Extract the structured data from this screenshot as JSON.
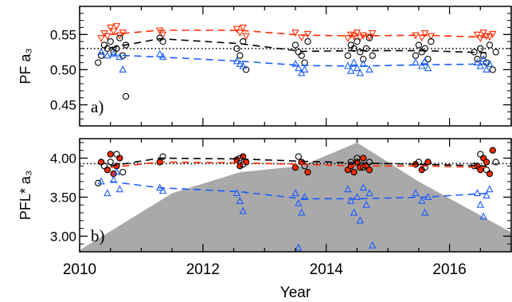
{
  "chart_data": [
    {
      "type": "scatter",
      "panel_label": "a)",
      "ylabel": "PF a₃",
      "xlabel": "",
      "xlim": [
        2010,
        2017
      ],
      "ylim": [
        0.42,
        0.59
      ],
      "yticks": [
        0.45,
        0.5,
        0.55
      ],
      "ytick_labels": [
        "0.45",
        "0.50",
        "0.55"
      ],
      "reference_line": 0.53,
      "colors": {
        "black": "#000000",
        "red": "#ff2a00",
        "blue": "#1a5cff"
      },
      "series": [
        {
          "marker": "triangle-down",
          "color": "red",
          "x": [
            2010.35,
            2010.4,
            2010.45,
            2010.5,
            2010.55,
            2010.6,
            2010.65,
            2010.7,
            2011.3,
            2011.35,
            2012.55,
            2012.6,
            2012.65,
            2012.7,
            2013.5,
            2013.6,
            2013.7,
            2014.35,
            2014.4,
            2014.45,
            2014.5,
            2014.55,
            2014.6,
            2014.7,
            2014.75,
            2015.45,
            2015.55,
            2015.6,
            2015.7,
            2016.45,
            2016.5,
            2016.55,
            2016.6,
            2016.65,
            2016.7
          ],
          "y": [
            0.545,
            0.552,
            0.548,
            0.56,
            0.555,
            0.562,
            0.549,
            0.553,
            0.556,
            0.55,
            0.558,
            0.553,
            0.56,
            0.548,
            0.553,
            0.546,
            0.551,
            0.545,
            0.55,
            0.548,
            0.553,
            0.546,
            0.549,
            0.547,
            0.552,
            0.549,
            0.546,
            0.552,
            0.548,
            0.55,
            0.545,
            0.553,
            0.548,
            0.547,
            0.551
          ]
        },
        {
          "marker": "circle",
          "color": "black",
          "x": [
            2010.3,
            2010.35,
            2010.4,
            2010.45,
            2010.5,
            2010.55,
            2010.6,
            2010.65,
            2010.7,
            2010.75,
            2011.3,
            2011.35,
            2012.55,
            2012.6,
            2012.65,
            2012.7,
            2013.5,
            2013.55,
            2013.6,
            2013.65,
            2013.7,
            2014.35,
            2014.4,
            2014.45,
            2014.5,
            2014.55,
            2014.6,
            2014.65,
            2014.7,
            2014.75,
            2015.45,
            2015.5,
            2015.55,
            2015.6,
            2015.65,
            2015.7,
            2016.4,
            2016.45,
            2016.5,
            2016.55,
            2016.6,
            2016.65,
            2016.7,
            2016.75,
            2010.75
          ],
          "y": [
            0.51,
            0.52,
            0.535,
            0.53,
            0.54,
            0.525,
            0.53,
            0.545,
            0.52,
            0.535,
            0.545,
            0.54,
            0.53,
            0.52,
            0.54,
            0.5,
            0.535,
            0.525,
            0.52,
            0.51,
            0.54,
            0.52,
            0.535,
            0.53,
            0.54,
            0.525,
            0.515,
            0.53,
            0.545,
            0.52,
            0.52,
            0.535,
            0.525,
            0.53,
            0.515,
            0.54,
            0.525,
            0.515,
            0.53,
            0.52,
            0.51,
            0.535,
            0.5,
            0.525,
            0.462
          ]
        },
        {
          "marker": "triangle-up",
          "color": "blue",
          "x": [
            2010.35,
            2010.45,
            2010.55,
            2010.65,
            2010.7,
            2011.3,
            2011.35,
            2012.55,
            2012.6,
            2012.65,
            2013.5,
            2013.55,
            2013.6,
            2013.65,
            2014.35,
            2014.4,
            2014.45,
            2014.5,
            2014.55,
            2014.6,
            2014.7,
            2015.45,
            2015.55,
            2015.6,
            2015.65,
            2016.45,
            2016.5,
            2016.55,
            2016.6,
            2016.65
          ],
          "y": [
            0.525,
            0.52,
            0.522,
            0.518,
            0.5,
            0.522,
            0.518,
            0.512,
            0.508,
            0.505,
            0.508,
            0.502,
            0.495,
            0.5,
            0.505,
            0.498,
            0.51,
            0.502,
            0.495,
            0.508,
            0.5,
            0.51,
            0.505,
            0.512,
            0.502,
            0.51,
            0.505,
            0.515,
            0.5,
            0.508
          ]
        },
        {
          "line": "dashed",
          "color": "red",
          "x": [
            2010.5,
            2011.3,
            2012.6,
            2013.6,
            2014.5,
            2015.6,
            2016.6
          ],
          "y": [
            0.55,
            0.556,
            0.556,
            0.549,
            0.548,
            0.549,
            0.546
          ]
        },
        {
          "line": "dashed",
          "color": "black",
          "x": [
            2010.5,
            2011.3,
            2012.6,
            2013.6,
            2014.5,
            2015.6,
            2016.6
          ],
          "y": [
            0.531,
            0.544,
            0.537,
            0.526,
            0.527,
            0.527,
            0.524
          ]
        },
        {
          "line": "dashed",
          "color": "blue",
          "x": [
            2010.5,
            2011.3,
            2012.6,
            2013.6,
            2014.5,
            2015.6,
            2016.6
          ],
          "y": [
            0.521,
            0.518,
            0.512,
            0.506,
            0.505,
            0.507,
            0.508
          ]
        }
      ]
    },
    {
      "type": "scatter",
      "panel_label": "b)",
      "ylabel": "PFL* a₃",
      "xlabel": "Year",
      "xlim": [
        2010,
        2017
      ],
      "ylim": [
        2.8,
        4.25
      ],
      "yticks": [
        3.0,
        3.5,
        4.0
      ],
      "ytick_labels": [
        "3.00",
        "3.50",
        "4.00"
      ],
      "xticks": [
        2010,
        2012,
        2014,
        2016
      ],
      "xtick_labels": [
        "2010",
        "2012",
        "2014",
        "2016"
      ],
      "reference_line": 3.93,
      "colors": {
        "black": "#000000",
        "red": "#ff2a00",
        "blue": "#1a5cff",
        "shade": "#a9a9a9"
      },
      "area": {
        "color": "shade",
        "x": [
          2010,
          2011.5,
          2012.6,
          2013.6,
          2014.5,
          2015.5,
          2017
        ],
        "y": [
          2.82,
          3.55,
          3.82,
          3.9,
          4.2,
          3.7,
          3.05
        ]
      },
      "series": [
        {
          "marker": "circle-filled",
          "color": "red",
          "x": [
            2010.35,
            2010.45,
            2010.5,
            2010.55,
            2010.6,
            2010.65,
            2011.3,
            2012.55,
            2012.6,
            2012.65,
            2012.7,
            2013.5,
            2013.6,
            2013.7,
            2014.35,
            2014.4,
            2014.45,
            2014.5,
            2014.55,
            2014.6,
            2014.65,
            2014.7,
            2015.45,
            2015.55,
            2015.65,
            2016.45,
            2016.5,
            2016.55,
            2016.6,
            2016.65,
            2016.7
          ],
          "y": [
            3.95,
            3.85,
            4.05,
            3.8,
            3.9,
            4.0,
            3.95,
            3.98,
            3.9,
            4.02,
            3.95,
            3.88,
            3.95,
            3.82,
            3.85,
            3.9,
            3.82,
            3.95,
            3.88,
            4.0,
            3.9,
            3.85,
            3.92,
            3.85,
            3.95,
            3.9,
            3.85,
            4.0,
            3.95,
            3.8,
            4.1
          ]
        },
        {
          "marker": "circle",
          "color": "black",
          "x": [
            2010.3,
            2010.4,
            2010.5,
            2010.6,
            2010.7,
            2011.35,
            2012.6,
            2012.65,
            2013.55,
            2013.65,
            2014.4,
            2014.5,
            2014.6,
            2014.7,
            2015.5,
            2015.6,
            2016.4,
            2016.5,
            2016.6,
            2016.75
          ],
          "y": [
            3.68,
            3.9,
            3.95,
            4.05,
            3.82,
            4.02,
            4.0,
            3.92,
            4.02,
            3.9,
            3.95,
            4.0,
            3.88,
            3.95,
            3.95,
            3.88,
            3.9,
            4.05,
            3.85,
            3.95
          ]
        },
        {
          "marker": "triangle-up",
          "color": "blue",
          "x": [
            2010.35,
            2010.45,
            2010.55,
            2010.6,
            2010.65,
            2011.3,
            2011.35,
            2012.55,
            2012.6,
            2012.65,
            2013.5,
            2013.55,
            2013.6,
            2013.65,
            2013.55,
            2014.35,
            2014.4,
            2014.45,
            2014.5,
            2014.55,
            2014.6,
            2014.65,
            2014.7,
            2014.75,
            2015.45,
            2015.55,
            2015.6,
            2015.65,
            2016.45,
            2016.5,
            2016.55,
            2016.6,
            2016.65
          ],
          "y": [
            3.7,
            3.55,
            3.72,
            3.82,
            3.6,
            3.62,
            3.58,
            3.55,
            3.45,
            3.32,
            3.55,
            3.42,
            3.3,
            3.5,
            2.85,
            3.6,
            3.45,
            3.3,
            3.5,
            3.2,
            3.62,
            3.4,
            3.55,
            2.88,
            3.55,
            3.45,
            3.3,
            3.5,
            3.55,
            3.4,
            3.25,
            3.52,
            3.6
          ]
        },
        {
          "line": "dashed",
          "color": "black",
          "x": [
            2010.5,
            2011.3,
            2012.6,
            2013.6,
            2014.5,
            2015.6,
            2016.6
          ],
          "y": [
            3.9,
            4.0,
            3.99,
            3.96,
            3.94,
            3.92,
            3.9
          ]
        },
        {
          "line": "dashed",
          "color": "red",
          "x": [
            2010.5,
            2011.3,
            2012.6,
            2013.6,
            2014.5,
            2015.6,
            2016.6
          ],
          "y": [
            3.88,
            3.95,
            3.94,
            3.92,
            3.9,
            3.9,
            3.88
          ]
        },
        {
          "line": "dashed",
          "color": "blue",
          "x": [
            2010.5,
            2011.3,
            2012.6,
            2013.6,
            2014.5,
            2015.6,
            2016.6
          ],
          "y": [
            3.7,
            3.62,
            3.57,
            3.48,
            3.48,
            3.5,
            3.55
          ]
        }
      ]
    }
  ]
}
